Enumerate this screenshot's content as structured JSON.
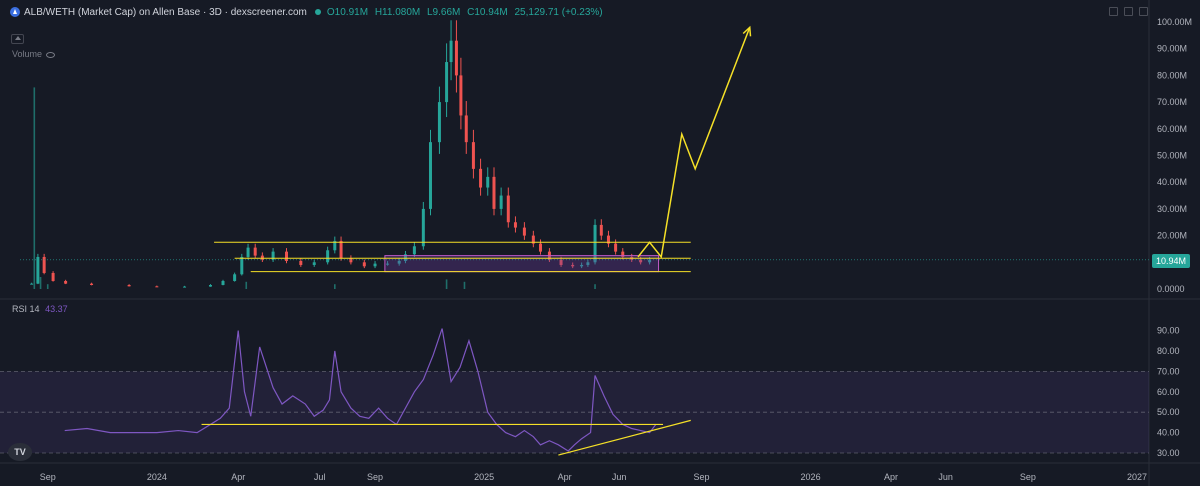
{
  "legend": {
    "title": "ALB/WETH (Market Cap) on Allen Base · 3D · dexscreener.com",
    "open": "O10.91M",
    "high": "H11.080M",
    "low": "L9.66M",
    "close": "C10.94M",
    "change": "25,129.71 (+0.23%)"
  },
  "volume_label": "Volume",
  "rsi_legend": {
    "name": "RSI",
    "length": "14",
    "value": "43.37"
  },
  "price_tag": "10.94M",
  "tv_logo": "TV",
  "colors": {
    "up": "#26a69a",
    "down": "#ef5350",
    "rsi": "#7e57c2",
    "annotation": "#f5e027",
    "zone": "#6a3d9a"
  },
  "chart_data": [
    {
      "type": "candlestick",
      "series": [
        {
          "name": "ALB/WETH (Market Cap)",
          "x": [
            "2023-08-14",
            "2023-08-21",
            "2023-08-28",
            "2023-09-07",
            "2023-09-21",
            "2023-10-20",
            "2023-12-01",
            "2024-01-01",
            "2024-02-01",
            "2024-03-01",
            "2024-03-15",
            "2024-03-28",
            "2024-04-05",
            "2024-04-12",
            "2024-04-20",
            "2024-04-28",
            "2024-05-10",
            "2024-05-25",
            "2024-06-10",
            "2024-06-25",
            "2024-07-10",
            "2024-07-18",
            "2024-07-25",
            "2024-08-05",
            "2024-08-20",
            "2024-09-01",
            "2024-09-15",
            "2024-09-28",
            "2024-10-05",
            "2024-10-15",
            "2024-10-25",
            "2024-11-02",
            "2024-11-12",
            "2024-11-20",
            "2024-11-25",
            "2024-12-01",
            "2024-12-06",
            "2024-12-12",
            "2024-12-20",
            "2024-12-28",
            "2025-01-05",
            "2025-01-12",
            "2025-01-20",
            "2025-01-28",
            "2025-02-05",
            "2025-02-15",
            "2025-02-25",
            "2025-03-05",
            "2025-03-15",
            "2025-03-28",
            "2025-04-10",
            "2025-04-20",
            "2025-04-27",
            "2025-05-05",
            "2025-05-12",
            "2025-05-20",
            "2025-05-28",
            "2025-06-05",
            "2025-06-15",
            "2025-06-25",
            "2025-07-05"
          ],
          "values": [
            2.0,
            12.0,
            6.0,
            3.0,
            2.0,
            1.5,
            1.0,
            0.8,
            0.9,
            1.5,
            3.0,
            5.5,
            12.0,
            15.5,
            12.5,
            11.0,
            14.0,
            10.5,
            9.0,
            10.0,
            14.5,
            18.0,
            11.5,
            10.0,
            8.5,
            9.5,
            9.5,
            10.5,
            13.0,
            16.0,
            30.0,
            55.0,
            70.0,
            85.0,
            93.0,
            80.0,
            65.0,
            55.0,
            45.0,
            38.0,
            42.0,
            30.0,
            35.0,
            25.0,
            23.0,
            20.0,
            17.0,
            14.0,
            11.0,
            9.0,
            8.5,
            9.0,
            10.0,
            24.0,
            20.0,
            17.0,
            14.0,
            12.0,
            11.0,
            10.0,
            10.94
          ]
        },
        {
          "name": "Volume",
          "x": [
            "2023-08-17",
            "2023-08-24",
            "2023-09-01",
            "2024-04-10",
            "2024-07-18",
            "2024-11-20",
            "2024-12-10",
            "2025-05-05"
          ],
          "values": [
            84,
            5,
            2,
            3,
            2,
            4,
            3,
            2
          ]
        }
      ],
      "ylim": [
        0,
        100
      ],
      "y_ticks": [
        "100.00M",
        "90.00M",
        "80.00M",
        "70.00M",
        "60.00M",
        "50.00M",
        "40.00M",
        "30.00M",
        "20.00M",
        "10.00M",
        "0.0000"
      ],
      "y_tick_values": [
        100,
        90,
        80,
        70,
        60,
        50,
        40,
        30,
        20,
        10,
        0
      ],
      "x_ticks": [
        "Sep",
        "2024",
        "Apr",
        "Jul",
        "Sep",
        "2025",
        "Apr",
        "Jun",
        "Sep",
        "2026",
        "Apr",
        "Jun",
        "Sep",
        "2027"
      ],
      "annotations": {
        "horizontal_lines": [
          17.5,
          11.5,
          6.5
        ],
        "zone": {
          "from": "2024-09-12",
          "to": "2025-07-15",
          "low": 6.5,
          "high": 12.5
        },
        "projection_path": {
          "x": [
            "2025-06-22",
            "2025-07-05",
            "2025-07-18",
            "2025-08-10",
            "2025-08-25",
            "2025-10-25"
          ],
          "values": [
            12.0,
            17.5,
            12.0,
            58.0,
            45.0,
            98.0
          ]
        }
      },
      "grid": false
    },
    {
      "type": "line",
      "series": [
        {
          "name": "RSI 14",
          "x": [
            "2023-09-20",
            "2023-10-15",
            "2023-11-10",
            "2023-12-05",
            "2024-01-01",
            "2024-01-25",
            "2024-02-15",
            "2024-03-01",
            "2024-03-12",
            "2024-03-22",
            "2024-04-01",
            "2024-04-08",
            "2024-04-15",
            "2024-04-25",
            "2024-05-01",
            "2024-05-10",
            "2024-05-20",
            "2024-06-01",
            "2024-06-15",
            "2024-06-25",
            "2024-07-05",
            "2024-07-12",
            "2024-07-18",
            "2024-07-25",
            "2024-08-05",
            "2024-08-15",
            "2024-08-25",
            "2024-09-05",
            "2024-09-15",
            "2024-09-25",
            "2024-10-05",
            "2024-10-15",
            "2024-10-25",
            "2024-11-05",
            "2024-11-15",
            "2024-11-25",
            "2024-12-05",
            "2024-12-15",
            "2024-12-25",
            "2025-01-05",
            "2025-01-15",
            "2025-01-25",
            "2025-02-05",
            "2025-02-15",
            "2025-02-25",
            "2025-03-05",
            "2025-03-15",
            "2025-03-25",
            "2025-04-05",
            "2025-04-12",
            "2025-04-20",
            "2025-04-30",
            "2025-05-05",
            "2025-05-15",
            "2025-05-25",
            "2025-06-05",
            "2025-06-15",
            "2025-06-25",
            "2025-07-05",
            "2025-07-12"
          ],
          "values": [
            41,
            42,
            40,
            40,
            40,
            41,
            40,
            44,
            47,
            52,
            90,
            60,
            48,
            82,
            74,
            62,
            54,
            58,
            54,
            48,
            51,
            56,
            80,
            60,
            52,
            48,
            47,
            52,
            47,
            44,
            52,
            60,
            66,
            78,
            91,
            65,
            72,
            85,
            70,
            50,
            44,
            40,
            38,
            41,
            38,
            34,
            36,
            34,
            31,
            34,
            37,
            40,
            68,
            58,
            49,
            44,
            42,
            41,
            40,
            44
          ]
        }
      ],
      "ylim": [
        25,
        95
      ],
      "y_ticks": [
        "90.00",
        "80.00",
        "70.00",
        "60.00",
        "50.00",
        "40.00",
        "30.00"
      ],
      "y_tick_values": [
        90,
        80,
        70,
        60,
        50,
        40,
        30
      ],
      "bands": {
        "upper": 70,
        "middle": 50,
        "lower": 30
      },
      "annotations": {
        "horizontal_line": {
          "from": "2024-02-20",
          "to": "2025-07-20",
          "value": 44
        },
        "trendline": {
          "x": [
            "2025-03-25",
            "2025-08-20"
          ],
          "values": [
            29,
            46
          ]
        }
      }
    }
  ]
}
